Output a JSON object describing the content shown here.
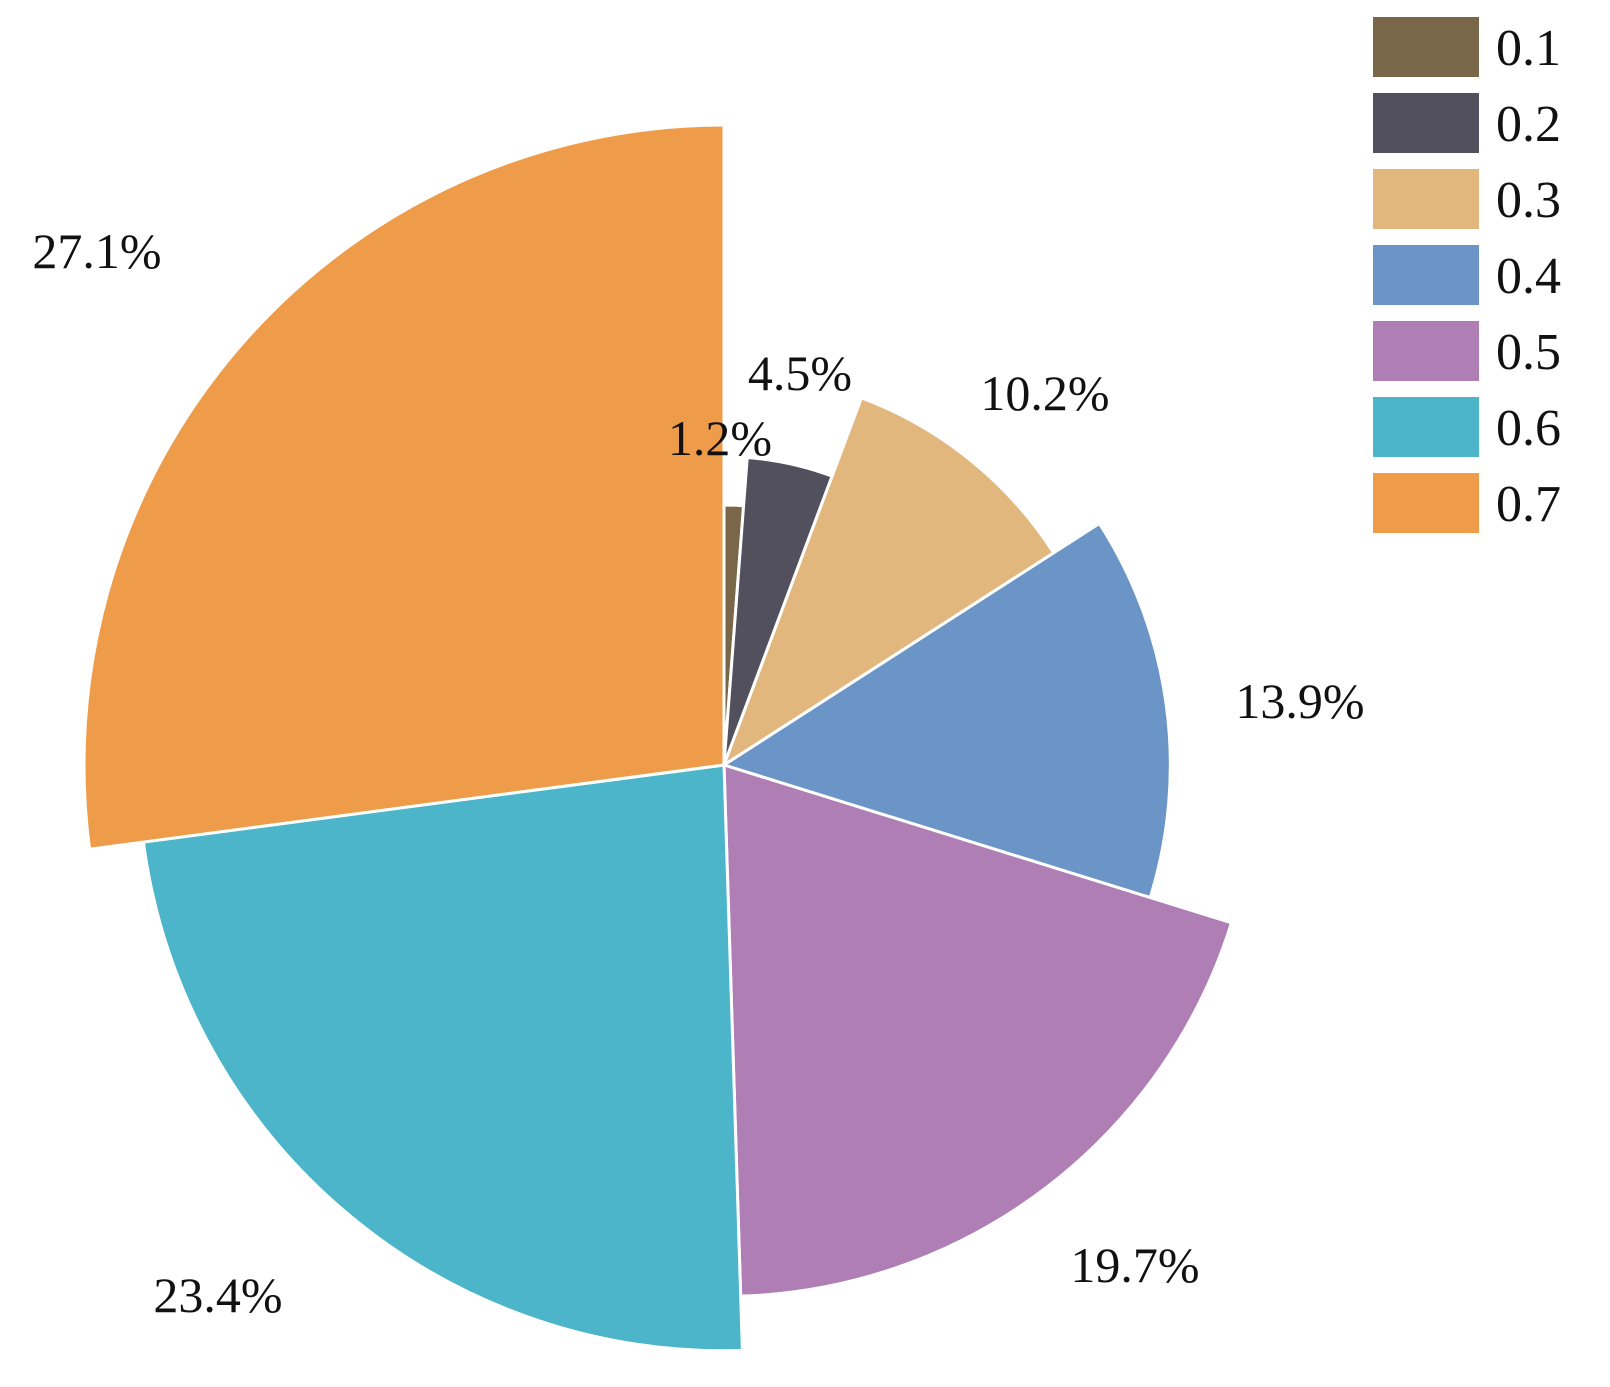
{
  "chart_data": {
    "type": "pie",
    "variant": "rose (radius varies by value)",
    "categories": [
      "0.1",
      "0.2",
      "0.3",
      "0.4",
      "0.5",
      "0.6",
      "0.7"
    ],
    "values": [
      1.2,
      4.5,
      10.2,
      13.9,
      19.7,
      23.4,
      27.1
    ],
    "labels": [
      "1.2%",
      "4.5%",
      "10.2%",
      "13.9%",
      "19.7%",
      "23.4%",
      "27.1%"
    ],
    "colors": [
      "#7a6749",
      "#52505d",
      "#e2b77e",
      "#6b95c6",
      "#ae7eb5",
      "#4cb5c9",
      "#ee9c49"
    ],
    "legend": "top-right",
    "start_angle": "12 o'clock, clockwise"
  }
}
